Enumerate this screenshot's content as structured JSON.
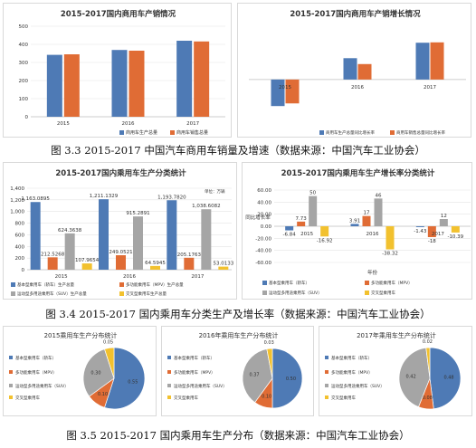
{
  "colors": {
    "blue": "#4e7ab5",
    "orange": "#e06c35",
    "gray": "#a5a5a5",
    "yellow": "#f2c12e",
    "grid": "#e3e3e3",
    "axis": "#bfbfbf",
    "text": "#333333"
  },
  "captions": {
    "fig33": "图 3.3 2015-2017 中国汽车商用车销量及增速（数据来源：中国汽车工业协会）",
    "fig34": "图 3.4 2015-2017 国内乘用车分类生产及增长率（数据来源：中国汽车工业协会）",
    "fig35": "图 3.5 2015-2017 国内乘用车生产分布（数据来源：中国汽车工业协会）"
  },
  "chart_data": [
    {
      "id": "c1",
      "type": "bar",
      "title": "2015-2017国内商用车产销情况",
      "categories": [
        "2015",
        "2016",
        "2017"
      ],
      "series": [
        {
          "name": "商用车生产总量",
          "values": [
            342,
            369,
            420
          ]
        },
        {
          "name": "商用车销售总量",
          "values": [
            345,
            365,
            416
          ]
        }
      ],
      "ylim": [
        0,
        500
      ],
      "yticks": [
        0,
        100,
        200,
        300,
        400,
        500
      ],
      "grid": true,
      "legend": "bottom"
    },
    {
      "id": "c2",
      "type": "bar",
      "title": "2015-2017国内商用车产销增长情况",
      "categories": [
        "2015",
        "2016",
        "2017"
      ],
      "series": [
        {
          "name": "商用车生产总量同比增长率",
          "values": [
            -9.97,
            8.01,
            13.81
          ]
        },
        {
          "name": "商用车销售总量同比增长率",
          "values": [
            -8.97,
            5.8,
            13.95
          ]
        }
      ],
      "ylim": [
        -15,
        20
      ],
      "grid": true,
      "legend": "bottom"
    },
    {
      "id": "c3",
      "type": "bar",
      "title": "2015-2017国内乘用车生产分类统计",
      "unit": "单位：万辆",
      "categories": [
        "2015",
        "2016",
        "2017"
      ],
      "series": [
        {
          "name": "基本型乘用车（轿车）生产总量",
          "values": [
            1163.0895,
            1211.1329,
            1193.782
          ]
        },
        {
          "name": "多功能乘用车（MPV）生产总量",
          "values": [
            212.5268,
            249.0521,
            205.1763
          ]
        },
        {
          "name": "运动型多用途乘用车（SUV）生产总量",
          "values": [
            624.3638,
            915.2891,
            1038.6082
          ]
        },
        {
          "name": "交叉型乘用车生产总量",
          "values": [
            107.9654,
            64.5945,
            53.0133
          ]
        }
      ],
      "value_labels": [
        [
          "1,163.0895",
          "1,211.1329",
          "1,193.7820"
        ],
        [
          "212.5268",
          "249.0521",
          "205.1763"
        ],
        [
          "624.3638",
          "915.2891",
          "1,038.6082"
        ],
        [
          "107.9654",
          "64.5945",
          "53.0133"
        ]
      ],
      "yticks": [
        "0",
        "200",
        "400",
        "600",
        "800",
        "1,000",
        "1,200",
        "1,400"
      ],
      "ylim": [
        0,
        1400
      ],
      "grid": true,
      "legend": "bottom"
    },
    {
      "id": "c4",
      "type": "bar",
      "title": "2015-2017国内乘用车生产增长率分类统计",
      "ylabel": "同比增长率",
      "xlabel": "年份",
      "categories": [
        "2015",
        "2016",
        "2017"
      ],
      "series": [
        {
          "name": "基本型乘用车（轿车）",
          "values": [
            -6.84,
            3.91,
            -1.43
          ]
        },
        {
          "name": "多功能乘用车（MPV）",
          "values": [
            7.73,
            17,
            -18
          ]
        },
        {
          "name": "运动型多用途乘用车（SUV）",
          "values": [
            50,
            46,
            12
          ]
        },
        {
          "name": "交叉型乘用车",
          "values": [
            -16.92,
            -38.32,
            -10.39
          ]
        }
      ],
      "value_labels": [
        [
          "-6.84",
          "3.91",
          "-1.43"
        ],
        [
          "7.73",
          "17",
          "-18"
        ],
        [
          "50",
          "46",
          "12"
        ],
        [
          "-16.92",
          "-38.32",
          "-10.39"
        ]
      ],
      "yticks": [
        60,
        40,
        20,
        0,
        -20,
        -40,
        -60
      ],
      "ytick_labels": [
        "60.00",
        "40.00",
        "20.00",
        "0.00",
        "-20.00",
        "-40.00",
        "-60.00"
      ],
      "ylim": [
        -60,
        60
      ],
      "grid": true,
      "legend": "bottom"
    },
    {
      "id": "p1",
      "type": "pie",
      "title": "2015乘用车生产分布统计",
      "labels": [
        "基本型乘用车（轿车）",
        "多功能乘用车（MPV）",
        "运动型多用途乘用车（SUV）",
        "交叉型乘用车"
      ],
      "values": [
        0.55,
        0.1,
        0.3,
        0.05
      ],
      "value_labels": [
        "0.55",
        "0.10",
        "0.30",
        "0.05"
      ],
      "legend": "left"
    },
    {
      "id": "p2",
      "type": "pie",
      "title": "2016年乘用车生产分布统计",
      "labels": [
        "基本型乘用车（轿车）",
        "多功能乘用车（MPV）",
        "运动型多用途乘用车（SUV）",
        "交叉型乘用车"
      ],
      "values": [
        0.5,
        0.1,
        0.37,
        0.03
      ],
      "value_labels": [
        "0.50",
        "0.10",
        "0.37",
        "0.03"
      ],
      "legend": "left"
    },
    {
      "id": "p3",
      "type": "pie",
      "title": "2017年乘用车生产分布统计",
      "labels": [
        "基本型乘用车（轿车）",
        "多功能乘用车（MPV）",
        "运动型多用途乘用车（SUV）",
        "交叉型乘用车"
      ],
      "values": [
        0.48,
        0.08,
        0.42,
        0.02
      ],
      "value_labels": [
        "0.48",
        "0.08",
        "0.42",
        "0.02"
      ],
      "legend": "left"
    }
  ]
}
